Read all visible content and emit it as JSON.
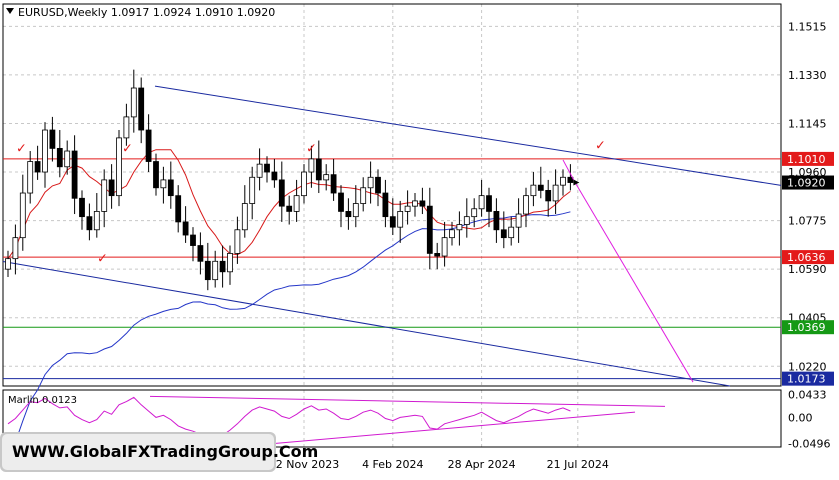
{
  "header": {
    "symbol_line": "EURUSD,Weekly  1.0917 1.0924 1.0910 1.0920"
  },
  "watermark": "WWW.GlobalFXTradingGroup.Com",
  "colors": {
    "background": "#ffffff",
    "grid": "#c8c8c8",
    "bull_candle": "#ffffff",
    "bear_candle": "#000000",
    "resistance": "#e31a1a",
    "support_green": "#159915",
    "channel": "#1a2aa0",
    "ma_slow": "#2436c8",
    "ma_fast": "#d81a1a",
    "projection": "#e020e0",
    "checkmark": "#e31a1a",
    "marlin": "#d01ad0",
    "current_price_bg": "#000000",
    "level_bg": "#e31a1a"
  },
  "chart_data": [
    {
      "type": "candlestick",
      "title": "EURUSD,Weekly",
      "ohlc_last": {
        "open": 1.0917,
        "high": 1.0924,
        "low": 1.091,
        "close": 1.092
      },
      "y_ticks": [
        1.1515,
        1.133,
        1.1145,
        1.096,
        1.0775,
        1.059,
        1.0405,
        1.022
      ],
      "ylim": [
        1.0145,
        1.16
      ],
      "x_ticks": [
        "12 Nov 2023",
        "4 Feb 2024",
        "28 Apr 2024",
        "21 Jul 2024"
      ],
      "levels": [
        {
          "value": 1.101,
          "label": "1.1010",
          "color": "#e31a1a",
          "style": "solid"
        },
        {
          "value": 1.0636,
          "label": "1.0636",
          "color": "#e31a1a",
          "style": "solid"
        },
        {
          "value": 1.0369,
          "label": "1.0369",
          "color": "#159915",
          "style": "solid"
        },
        {
          "value": 1.0173,
          "label": "1.0173",
          "color": "#1a2aa0",
          "style": "solid"
        }
      ],
      "current_price": {
        "value": 1.092,
        "label": "1.0920"
      },
      "closes": [
        1.063,
        1.071,
        1.088,
        1.1,
        1.096,
        1.112,
        1.105,
        1.098,
        1.104,
        1.086,
        1.079,
        1.074,
        1.081,
        1.093,
        1.087,
        1.109,
        1.117,
        1.128,
        1.112,
        1.1,
        1.09,
        1.093,
        1.087,
        1.077,
        1.072,
        1.068,
        1.062,
        1.055,
        1.062,
        1.058,
        1.065,
        1.074,
        1.084,
        1.094,
        1.099,
        1.096,
        1.093,
        1.083,
        1.081,
        1.087,
        1.096,
        1.101,
        1.093,
        1.095,
        1.088,
        1.081,
        1.079,
        1.084,
        1.09,
        1.094,
        1.088,
        1.079,
        1.075,
        1.081,
        1.083,
        1.085,
        1.083,
        1.065,
        1.064,
        1.071,
        1.074,
        1.076,
        1.079,
        1.082,
        1.087,
        1.081,
        1.074,
        1.071,
        1.075,
        1.08,
        1.087,
        1.091,
        1.089,
        1.085,
        1.091,
        1.094,
        1.092
      ],
      "annotations": {
        "checkmarks": 5,
        "checkmark_glyph": "✓"
      }
    },
    {
      "type": "line",
      "title": "Marlin 0.0123",
      "y_ticks": [
        0.0433,
        0.0,
        -0.0496
      ],
      "ylim": [
        -0.056,
        0.052
      ],
      "series": [
        {
          "values": [
            -0.012,
            -0.002,
            0.014,
            0.03,
            0.028,
            0.036,
            0.026,
            0.018,
            0.02,
            0.004,
            -0.004,
            -0.01,
            -0.004,
            0.012,
            0.006,
            0.024,
            0.03,
            0.038,
            0.024,
            0.012,
            0.0,
            0.004,
            -0.004,
            -0.016,
            -0.022,
            -0.026,
            -0.032,
            -0.04,
            -0.03,
            -0.034,
            -0.024,
            -0.012,
            0.002,
            0.014,
            0.02,
            0.016,
            0.012,
            0.002,
            -0.002,
            0.006,
            0.016,
            0.022,
            0.014,
            0.016,
            0.008,
            -0.002,
            -0.004,
            0.002,
            0.01,
            0.014,
            0.008,
            -0.002,
            -0.006,
            0.0,
            0.002,
            0.004,
            0.002,
            -0.02,
            -0.022,
            -0.012,
            -0.008,
            -0.004,
            0.0,
            0.004,
            0.01,
            0.002,
            -0.006,
            -0.01,
            -0.004,
            0.002,
            0.01,
            0.016,
            0.012,
            0.008,
            0.014,
            0.018,
            0.0123
          ]
        }
      ]
    }
  ]
}
